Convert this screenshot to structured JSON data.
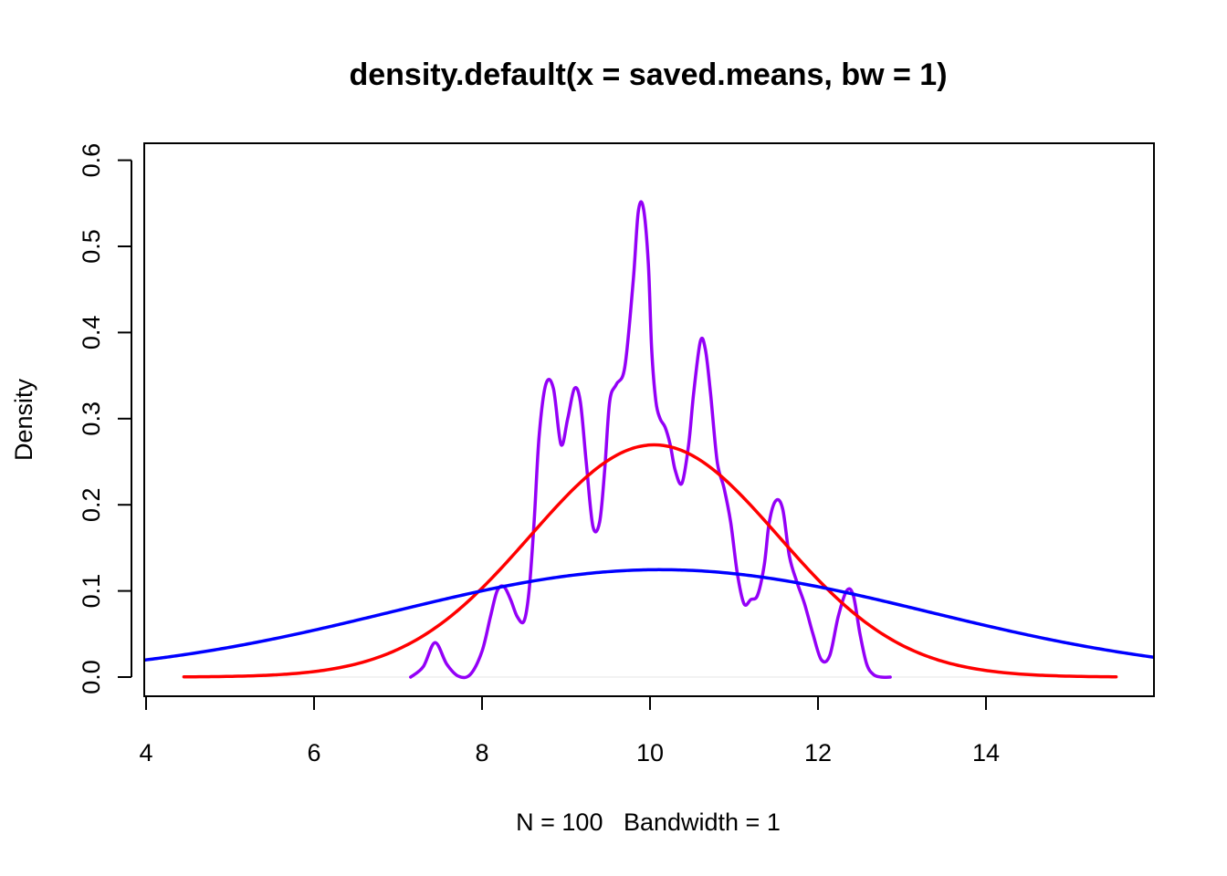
{
  "chart_data": {
    "type": "line",
    "title": "density.default(x = saved.means, bw = 1)",
    "xlabel": "N = 100   Bandwidth = 1",
    "ylabel": "Density",
    "xlim": [
      4,
      16
    ],
    "ylim": [
      0,
      0.6
    ],
    "xticks": [
      "4",
      "6",
      "8",
      "10",
      "12",
      "14"
    ],
    "yticks": [
      "0.0",
      "0.1",
      "0.2",
      "0.3",
      "0.4",
      "0.5",
      "0.6"
    ],
    "series": [
      {
        "color": "#9400F7",
        "x": [
          7.15,
          7.3,
          7.44,
          7.58,
          7.72,
          7.86,
          8.0,
          8.1,
          8.18,
          8.26,
          8.34,
          8.42,
          8.5,
          8.56,
          8.62,
          8.68,
          8.76,
          8.85,
          8.94,
          9.02,
          9.1,
          9.17,
          9.24,
          9.32,
          9.4,
          9.46,
          9.52,
          9.6,
          9.7,
          9.8,
          9.86,
          9.92,
          9.98,
          10.02,
          10.07,
          10.12,
          10.18,
          10.24,
          10.3,
          10.38,
          10.46,
          10.52,
          10.6,
          10.66,
          10.72,
          10.8,
          10.88,
          10.96,
          11.04,
          11.12,
          11.2,
          11.28,
          11.36,
          11.42,
          11.5,
          11.58,
          11.66,
          11.75,
          11.84,
          11.94,
          12.04,
          12.14,
          12.24,
          12.34,
          12.42,
          12.5,
          12.58,
          12.66,
          12.75,
          12.86
        ],
        "y": [
          0.0,
          0.012,
          0.04,
          0.015,
          0.001,
          0.003,
          0.03,
          0.07,
          0.1,
          0.105,
          0.09,
          0.07,
          0.065,
          0.1,
          0.18,
          0.28,
          0.34,
          0.335,
          0.27,
          0.3,
          0.335,
          0.32,
          0.25,
          0.175,
          0.18,
          0.24,
          0.32,
          0.34,
          0.36,
          0.46,
          0.54,
          0.545,
          0.48,
          0.38,
          0.32,
          0.3,
          0.29,
          0.27,
          0.24,
          0.225,
          0.27,
          0.33,
          0.39,
          0.38,
          0.33,
          0.25,
          0.22,
          0.18,
          0.12,
          0.085,
          0.09,
          0.095,
          0.13,
          0.18,
          0.205,
          0.195,
          0.14,
          0.11,
          0.085,
          0.05,
          0.02,
          0.025,
          0.07,
          0.1,
          0.095,
          0.05,
          0.015,
          0.003,
          0.0,
          0.0
        ]
      },
      {
        "color": "#FF0000",
        "mean": 10.05,
        "sd": 1.48,
        "x_range": [
          4.45,
          15.55
        ]
      },
      {
        "color": "#0000FF",
        "mean": 10.12,
        "sd": 3.2,
        "x_range": [
          3.9,
          16.1
        ]
      }
    ]
  }
}
